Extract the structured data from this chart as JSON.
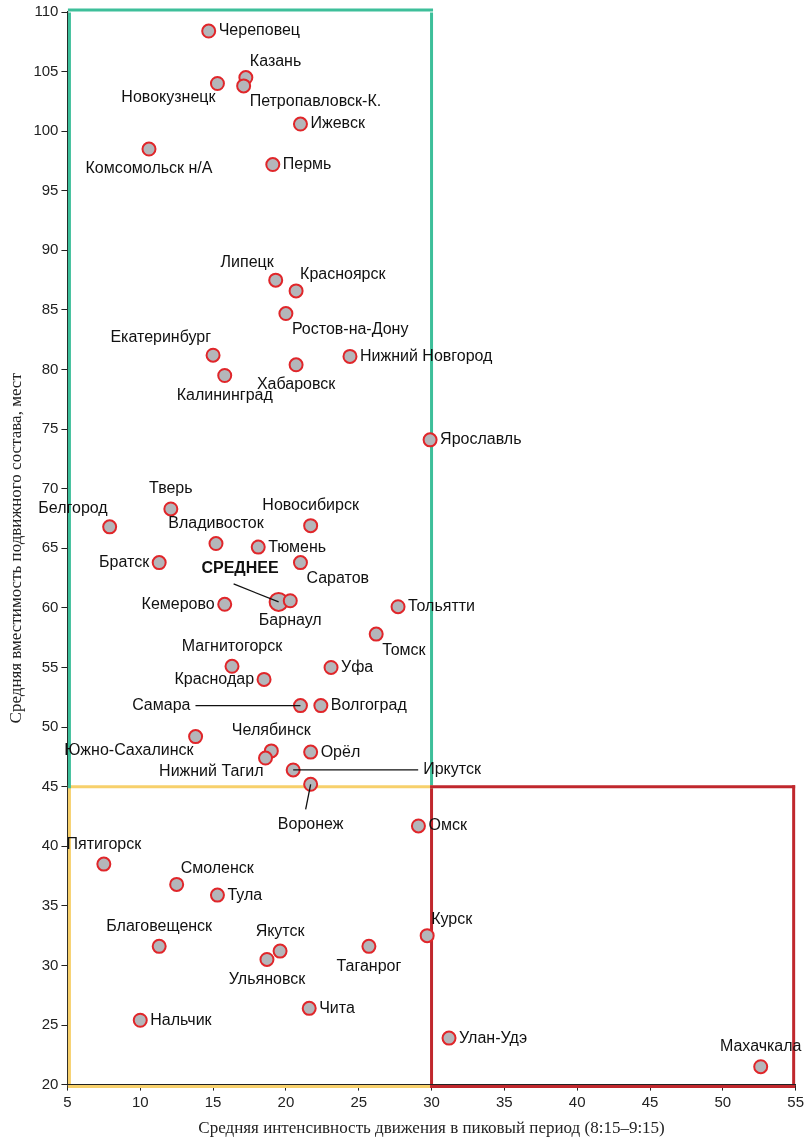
{
  "chart_data": {
    "type": "scatter",
    "xlabel": "Средняя интенсивность движения в пиковый период (8:15–9:15)",
    "ylabel": "Средняя вместимость подвижного состава, мест",
    "xlim": [
      5,
      55
    ],
    "xticks": [
      5,
      10,
      15,
      20,
      25,
      30,
      35,
      40,
      45,
      50,
      55
    ],
    "ylim": [
      20,
      110
    ],
    "yticks": [
      20,
      25,
      30,
      35,
      40,
      45,
      50,
      55,
      60,
      65,
      70,
      75,
      80,
      85,
      90,
      95,
      100,
      105,
      110
    ],
    "grid": false,
    "legend": false,
    "marker": "circle",
    "series": [
      {
        "color": "#b4b6ba",
        "x": [
          14.7,
          17.25,
          15.3,
          17.1,
          21.0,
          10.6,
          19.1,
          19.3,
          20.7,
          20.0,
          15.0,
          20.7,
          24.4,
          15.8,
          29.9,
          12.1,
          7.9,
          21.7,
          15.2,
          18.1,
          11.3,
          21.0,
          15.8,
          27.7,
          26.2,
          16.3,
          23.1,
          18.5,
          21.0,
          22.4,
          13.8,
          19.0,
          18.6,
          21.7,
          20.5,
          21.7,
          29.1,
          7.5,
          12.5,
          15.3,
          11.3,
          19.6,
          18.7,
          25.7,
          29.7,
          21.6,
          10.0,
          31.2,
          52.6,
          20.3
        ],
        "values": [
          108.4,
          104.5,
          104.0,
          103.8,
          100.6,
          98.5,
          97.2,
          87.5,
          86.6,
          84.7,
          81.2,
          80.4,
          81.1,
          79.5,
          74.1,
          68.3,
          66.8,
          66.9,
          65.4,
          65.1,
          63.8,
          63.8,
          60.3,
          60.1,
          57.8,
          55.1,
          55.0,
          54.0,
          51.8,
          51.8,
          49.2,
          48.0,
          47.4,
          47.9,
          46.4,
          45.2,
          41.7,
          38.5,
          36.8,
          35.9,
          31.6,
          31.2,
          30.5,
          31.6,
          32.5,
          26.4,
          25.4,
          23.9,
          21.5,
          60.6
        ]
      },
      {
        "name": "СРЕДНЕЕ",
        "color": "#b4b6ba",
        "x": [
          19.5
        ],
        "values": [
          60.5
        ]
      }
    ],
    "ref_lines": [
      {
        "axis": "x",
        "value": 30
      },
      {
        "axis": "y",
        "value": 45
      },
      {
        "axis": "x",
        "value": 5
      },
      {
        "axis": "x",
        "value": 55
      },
      {
        "axis": "y",
        "value": 20
      },
      {
        "axis": "y",
        "value": 110
      }
    ],
    "annotations": [
      {
        "text": "Череповец",
        "x": 14.7,
        "y": 108.4
      },
      {
        "text": "Казань",
        "x": 17.25,
        "y": 104.5
      },
      {
        "text": "Новокузнецк",
        "x": 15.3,
        "y": 104.0
      },
      {
        "text": "Петропавловск-К.",
        "x": 17.1,
        "y": 103.8
      },
      {
        "text": "Ижевск",
        "x": 21.0,
        "y": 100.6
      },
      {
        "text": "Комсомольск н/А",
        "x": 10.6,
        "y": 98.5
      },
      {
        "text": "Пермь",
        "x": 19.1,
        "y": 97.2
      },
      {
        "text": "Липецк",
        "x": 19.3,
        "y": 87.5
      },
      {
        "text": "Красноярск",
        "x": 20.7,
        "y": 86.6
      },
      {
        "text": "Ростов-на-Дону",
        "x": 20.0,
        "y": 84.7
      },
      {
        "text": "Екатеринбург",
        "x": 15.0,
        "y": 81.2
      },
      {
        "text": "Хабаровск",
        "x": 20.7,
        "y": 80.4
      },
      {
        "text": "Нижний Новгород",
        "x": 24.4,
        "y": 81.1
      },
      {
        "text": "Калининград",
        "x": 15.8,
        "y": 79.5
      },
      {
        "text": "Ярославль",
        "x": 29.9,
        "y": 74.1
      },
      {
        "text": "Тверь",
        "x": 12.1,
        "y": 68.3
      },
      {
        "text": "Белгород",
        "x": 7.9,
        "y": 66.8
      },
      {
        "text": "Новосибирск",
        "x": 21.7,
        "y": 66.9
      },
      {
        "text": "Владивосток",
        "x": 15.2,
        "y": 65.4
      },
      {
        "text": "Тюмень",
        "x": 18.1,
        "y": 65.1
      },
      {
        "text": "Братск",
        "x": 11.3,
        "y": 63.8
      },
      {
        "text": "Саратов",
        "x": 21.0,
        "y": 63.8
      },
      {
        "text": "Кемерово",
        "x": 15.8,
        "y": 60.3
      },
      {
        "text": "Тольятти",
        "x": 27.7,
        "y": 60.1
      },
      {
        "text": "Томск",
        "x": 26.2,
        "y": 57.8
      },
      {
        "text": "Магнитогорск",
        "x": 16.3,
        "y": 55.1
      },
      {
        "text": "Уфа",
        "x": 23.1,
        "y": 55.0
      },
      {
        "text": "Краснодар",
        "x": 18.5,
        "y": 54.0
      },
      {
        "text": "Самара",
        "x": 21.0,
        "y": 51.8
      },
      {
        "text": "Волгоград",
        "x": 22.4,
        "y": 51.8
      },
      {
        "text": "Южно-Сахалинск",
        "x": 13.8,
        "y": 49.2
      },
      {
        "text": "Челябинск",
        "x": 19.0,
        "y": 48.0
      },
      {
        "text": "Нижний Тагил",
        "x": 18.6,
        "y": 47.4
      },
      {
        "text": "Орёл",
        "x": 21.7,
        "y": 47.9
      },
      {
        "text": "Иркутск",
        "x": 20.5,
        "y": 46.4
      },
      {
        "text": "Воронеж",
        "x": 21.7,
        "y": 45.2
      },
      {
        "text": "Омск",
        "x": 29.1,
        "y": 41.7
      },
      {
        "text": "Пятигорск",
        "x": 7.5,
        "y": 38.5
      },
      {
        "text": "Смоленск",
        "x": 12.5,
        "y": 36.8
      },
      {
        "text": "Тула",
        "x": 15.3,
        "y": 35.9
      },
      {
        "text": "Благовещенск",
        "x": 11.3,
        "y": 31.6
      },
      {
        "text": "Якутск",
        "x": 19.6,
        "y": 31.2
      },
      {
        "text": "Ульяновск",
        "x": 18.7,
        "y": 30.5
      },
      {
        "text": "Таганрог",
        "x": 25.7,
        "y": 31.6
      },
      {
        "text": "Курск",
        "x": 29.7,
        "y": 32.5
      },
      {
        "text": "Чита",
        "x": 21.6,
        "y": 26.4
      },
      {
        "text": "Нальчик",
        "x": 10.0,
        "y": 25.4
      },
      {
        "text": "Улан-Удэ",
        "x": 31.2,
        "y": 23.9
      },
      {
        "text": "Махачкала",
        "x": 52.6,
        "y": 21.5
      },
      {
        "text": "Барнаул",
        "x": 20.3,
        "y": 60.6
      }
    ]
  }
}
